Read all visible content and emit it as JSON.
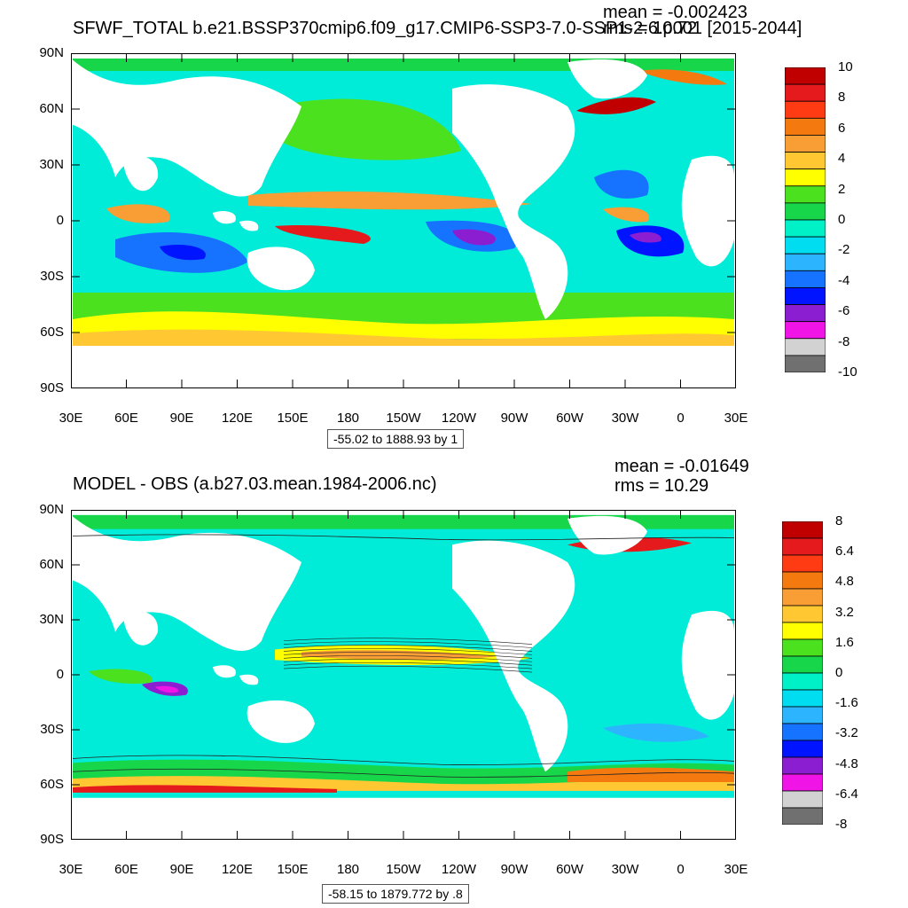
{
  "panels": [
    {
      "title": "SFWF_TOTAL b.e21.BSSP370cmip6.f09_g17.CMIP6-SSP3-7.0-SSP1-2.6.p001 [2015-2044]",
      "mean_text": "mean = -0.002423",
      "rms_text": "rms = 10.72",
      "range_text": "-55.02 to 1888.93 by 1",
      "colorbar_labels": [
        "10",
        "8",
        "6",
        "4",
        "2",
        "0",
        "-2",
        "-4",
        "-6",
        "-8",
        "-10"
      ]
    },
    {
      "title": "MODEL - OBS (a.b27.03.mean.1984-2006.nc)",
      "mean_text": "mean = -0.01649",
      "rms_text": "rms = 10.29",
      "range_text": "-58.15 to 1879.772 by .8",
      "colorbar_labels": [
        "8",
        "6.4",
        "4.8",
        "3.2",
        "1.6",
        "0",
        "-1.6",
        "-3.2",
        "-4.8",
        "-6.4",
        "-8"
      ]
    }
  ],
  "axes": {
    "lat_labels": [
      "90N",
      "60N",
      "30N",
      "0",
      "30S",
      "60S",
      "90S"
    ],
    "lon_labels": [
      "30E",
      "60E",
      "90E",
      "120E",
      "150E",
      "180",
      "150W",
      "120W",
      "90W",
      "60W",
      "30W",
      "0",
      "30E"
    ]
  },
  "colorbar_colors": [
    "#c00000",
    "#e41a1c",
    "#ff3b14",
    "#f47a10",
    "#f99e35",
    "#ffc832",
    "#ffff00",
    "#4ce11f",
    "#18d64a",
    "#00f0c8",
    "#00dcf0",
    "#2cb4ff",
    "#1673ff",
    "#0014ff",
    "#8c1ed2",
    "#f014e6",
    "#d2d2d2",
    "#707070"
  ]
}
